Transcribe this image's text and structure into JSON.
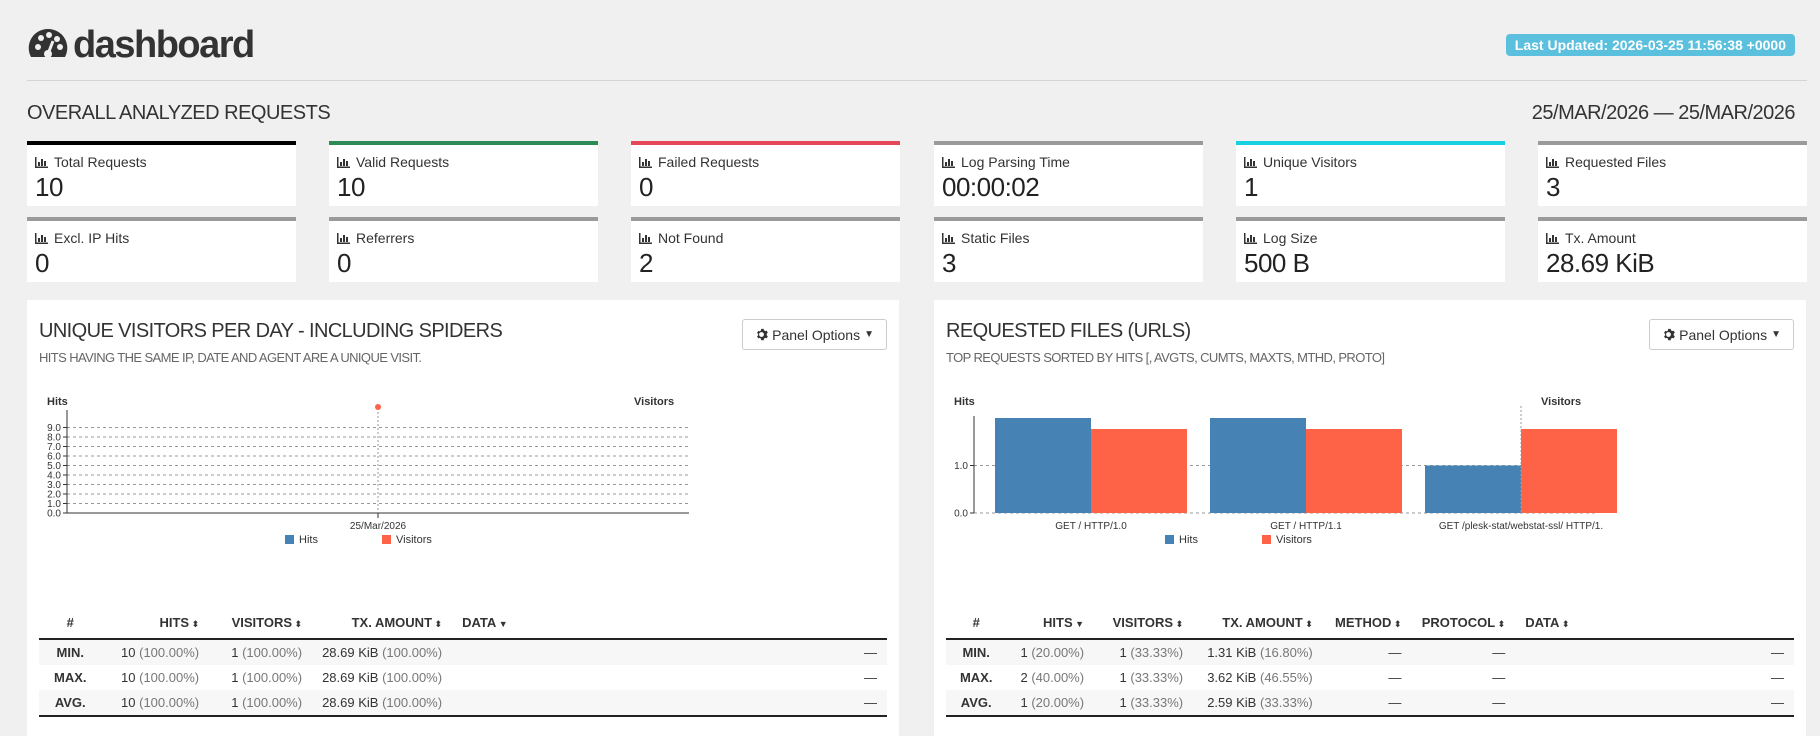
{
  "header": {
    "brand": "dashboard",
    "last_updated": "Last Updated: 2026-03-25 11:56:38 +0000"
  },
  "overall": {
    "title": "OVERALL ANALYZED REQUESTS",
    "date_range": "25/MAR/2026 — 25/MAR/2026"
  },
  "metrics": [
    {
      "label": "Total Requests",
      "value": "10",
      "color": "#000000"
    },
    {
      "label": "Valid Requests",
      "value": "10",
      "color": "#2e8b57"
    },
    {
      "label": "Failed Requests",
      "value": "0",
      "color": "#e64759"
    },
    {
      "label": "Log Parsing Time",
      "value": "00:00:02",
      "color": "#9a9a9a"
    },
    {
      "label": "Unique Visitors",
      "value": "1",
      "color": "#17d1e0"
    },
    {
      "label": "Requested Files",
      "value": "3",
      "color": "#9a9a9a"
    },
    {
      "label": "Excl. IP Hits",
      "value": "0",
      "color": "#9a9a9a"
    },
    {
      "label": "Referrers",
      "value": "0",
      "color": "#9a9a9a"
    },
    {
      "label": "Not Found",
      "value": "2",
      "color": "#9a9a9a"
    },
    {
      "label": "Static Files",
      "value": "3",
      "color": "#9a9a9a"
    },
    {
      "label": "Log Size",
      "value": "500 B",
      "color": "#9a9a9a"
    },
    {
      "label": "Tx. Amount",
      "value": "28.69 KiB",
      "color": "#9a9a9a"
    }
  ],
  "panels": {
    "visitors": {
      "title": "UNIQUE VISITORS PER DAY - INCLUDING SPIDERS",
      "subtitle": "HITS HAVING THE SAME IP, DATE AND AGENT ARE A UNIQUE VISIT.",
      "options_label": "Panel Options",
      "table": {
        "headers": [
          "#",
          "HITS",
          "VISITORS",
          "TX. AMOUNT",
          "DATA"
        ],
        "rows": [
          {
            "label": "MIN.",
            "hits": "10",
            "hits_pct": "(100.00%)",
            "visitors": "1",
            "visitors_pct": "(100.00%)",
            "tx": "28.69 KiB",
            "tx_pct": "(100.00%)",
            "data": "—"
          },
          {
            "label": "MAX.",
            "hits": "10",
            "hits_pct": "(100.00%)",
            "visitors": "1",
            "visitors_pct": "(100.00%)",
            "tx": "28.69 KiB",
            "tx_pct": "(100.00%)",
            "data": "—"
          },
          {
            "label": "AVG.",
            "hits": "10",
            "hits_pct": "(100.00%)",
            "visitors": "1",
            "visitors_pct": "(100.00%)",
            "tx": "28.69 KiB",
            "tx_pct": "(100.00%)",
            "data": "—"
          }
        ]
      }
    },
    "requests": {
      "title": "REQUESTED FILES (URLS)",
      "subtitle": "TOP REQUESTS SORTED BY HITS [, AVGTS, CUMTS, MAXTS, MTHD, PROTO]",
      "options_label": "Panel Options",
      "table": {
        "headers": [
          "#",
          "HITS",
          "VISITORS",
          "TX. AMOUNT",
          "METHOD",
          "PROTOCOL",
          "DATA"
        ],
        "rows": [
          {
            "label": "MIN.",
            "hits": "1",
            "hits_pct": "(20.00%)",
            "visitors": "1",
            "visitors_pct": "(33.33%)",
            "tx": "1.31 KiB",
            "tx_pct": "(16.80%)",
            "method": "—",
            "protocol": "—",
            "data": "—"
          },
          {
            "label": "MAX.",
            "hits": "2",
            "hits_pct": "(40.00%)",
            "visitors": "1",
            "visitors_pct": "(33.33%)",
            "tx": "3.62 KiB",
            "tx_pct": "(46.55%)",
            "method": "—",
            "protocol": "—",
            "data": "—"
          },
          {
            "label": "AVG.",
            "hits": "1",
            "hits_pct": "(20.00%)",
            "visitors": "1",
            "visitors_pct": "(33.33%)",
            "tx": "2.59 KiB",
            "tx_pct": "(33.33%)",
            "method": "—",
            "protocol": "—",
            "data": "—"
          }
        ]
      }
    }
  },
  "chart_data": [
    {
      "type": "line",
      "categories": [
        "25/Mar/2026"
      ],
      "series": [
        {
          "name": "Hits",
          "values": [
            10
          ],
          "color": "#4682b4"
        },
        {
          "name": "Visitors",
          "values": [
            1
          ],
          "color": "#ff6347"
        }
      ],
      "ylabel_left": "Hits",
      "ylabel_right": "Visitors",
      "yticks": [
        "0.0",
        "1.0",
        "2.0",
        "3.0",
        "4.0",
        "5.0",
        "6.0",
        "7.0",
        "8.0",
        "9.0"
      ],
      "ylim": [
        0,
        10
      ],
      "legend": "bottom-center",
      "grid": true
    },
    {
      "type": "bar",
      "categories": [
        "GET / HTTP/1.0",
        "GET / HTTP/1.1",
        "GET /plesk-stat/webstat-ssl/ HTTP/1."
      ],
      "series": [
        {
          "name": "Hits",
          "values": [
            2,
            2,
            1
          ],
          "color": "#4682b4"
        },
        {
          "name": "Visitors",
          "values": [
            1,
            1,
            1
          ],
          "color": "#ff6347"
        }
      ],
      "ylabel_left": "Hits",
      "ylabel_right": "Visitors",
      "yticks": [
        "0.0",
        "1.0"
      ],
      "ylim": [
        0,
        2
      ],
      "legend": "bottom-center",
      "grid": true
    }
  ]
}
